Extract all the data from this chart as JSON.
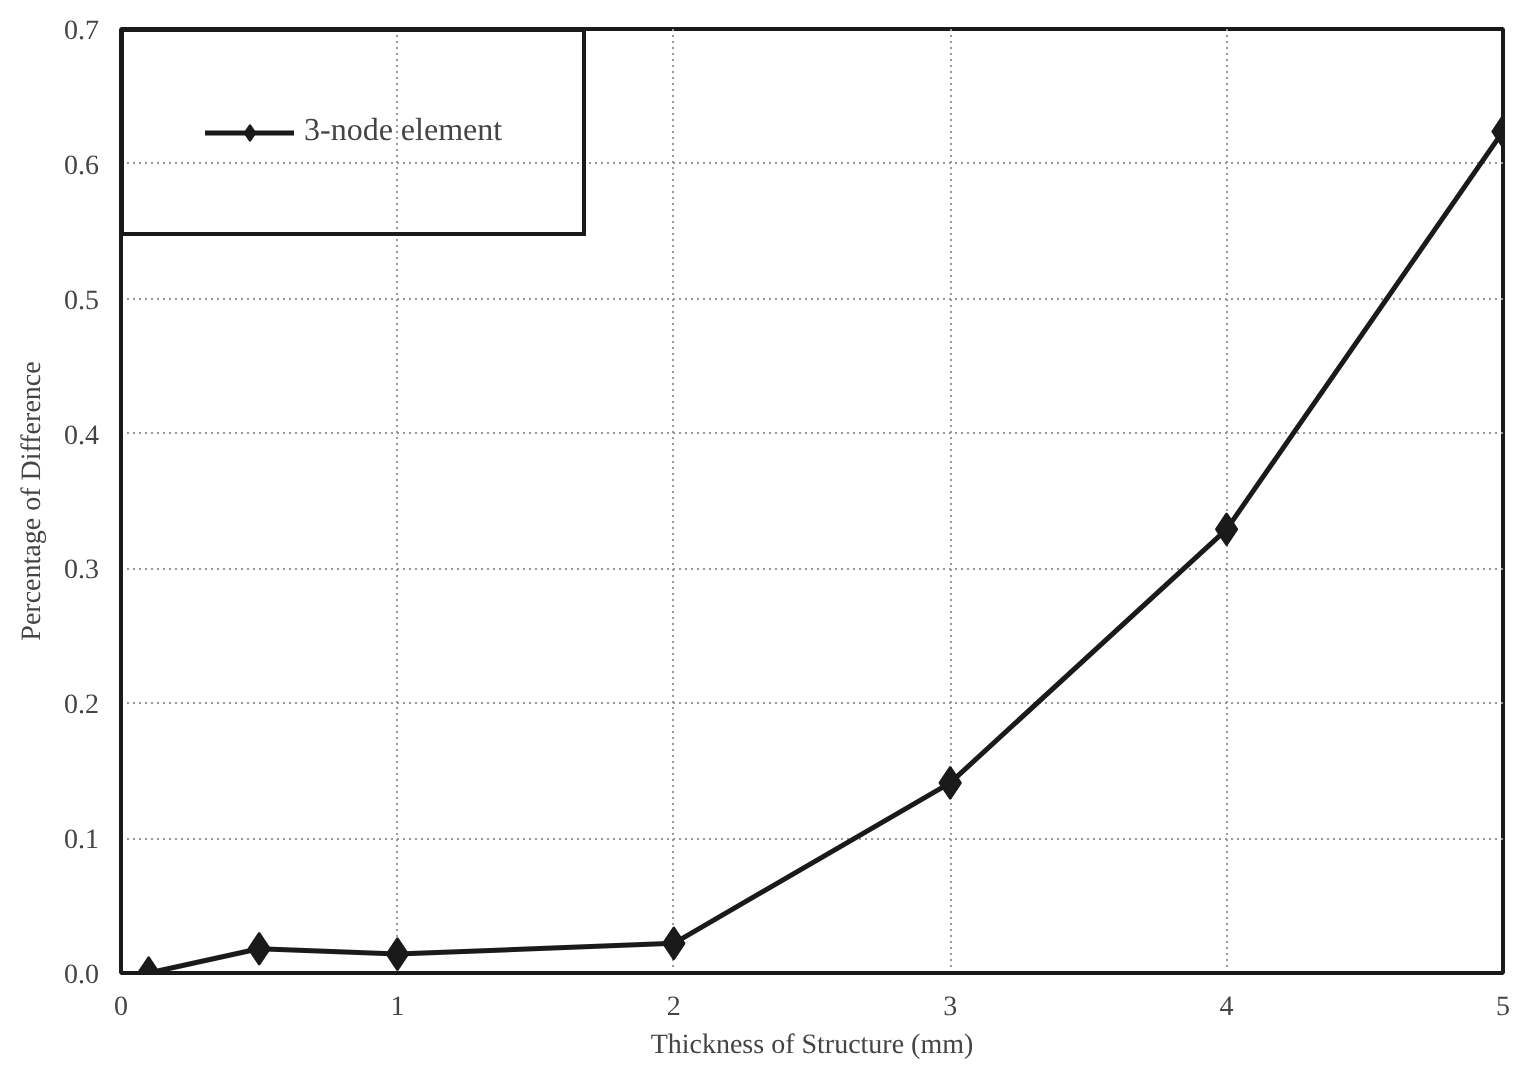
{
  "chart_data": {
    "type": "line",
    "xlabel": "Thickness of Structure (mm)",
    "ylabel": "Percentage of Difference",
    "x": [
      0.1,
      0.5,
      1,
      2,
      3,
      4,
      5
    ],
    "series": [
      {
        "name": "3-node element",
        "color": "#1a1a1a",
        "values": [
          0.0,
          0.018,
          0.014,
          0.022,
          0.141,
          0.329,
          0.624
        ]
      }
    ],
    "xlim": [
      0,
      5
    ],
    "xticks": [
      0,
      1,
      2,
      3,
      4,
      5
    ],
    "ylim": [
      0,
      0.7
    ],
    "yticks": [
      {
        "value": 0,
        "label": "0.0"
      },
      {
        "value": 0.1,
        "label": "0.1"
      },
      {
        "value": 0.2,
        "label": "0.2"
      },
      {
        "value": 0.3,
        "label": "0.3"
      },
      {
        "value": 0.4,
        "label": "0.4"
      },
      {
        "value": 0.5,
        "label": "0.5"
      },
      {
        "value": 0.6,
        "label": "0.6"
      },
      {
        "value": 0.7,
        "label": "0.7"
      }
    ],
    "grid": true,
    "legend": "top left",
    "marker": "diamond",
    "line_style": "solid"
  }
}
